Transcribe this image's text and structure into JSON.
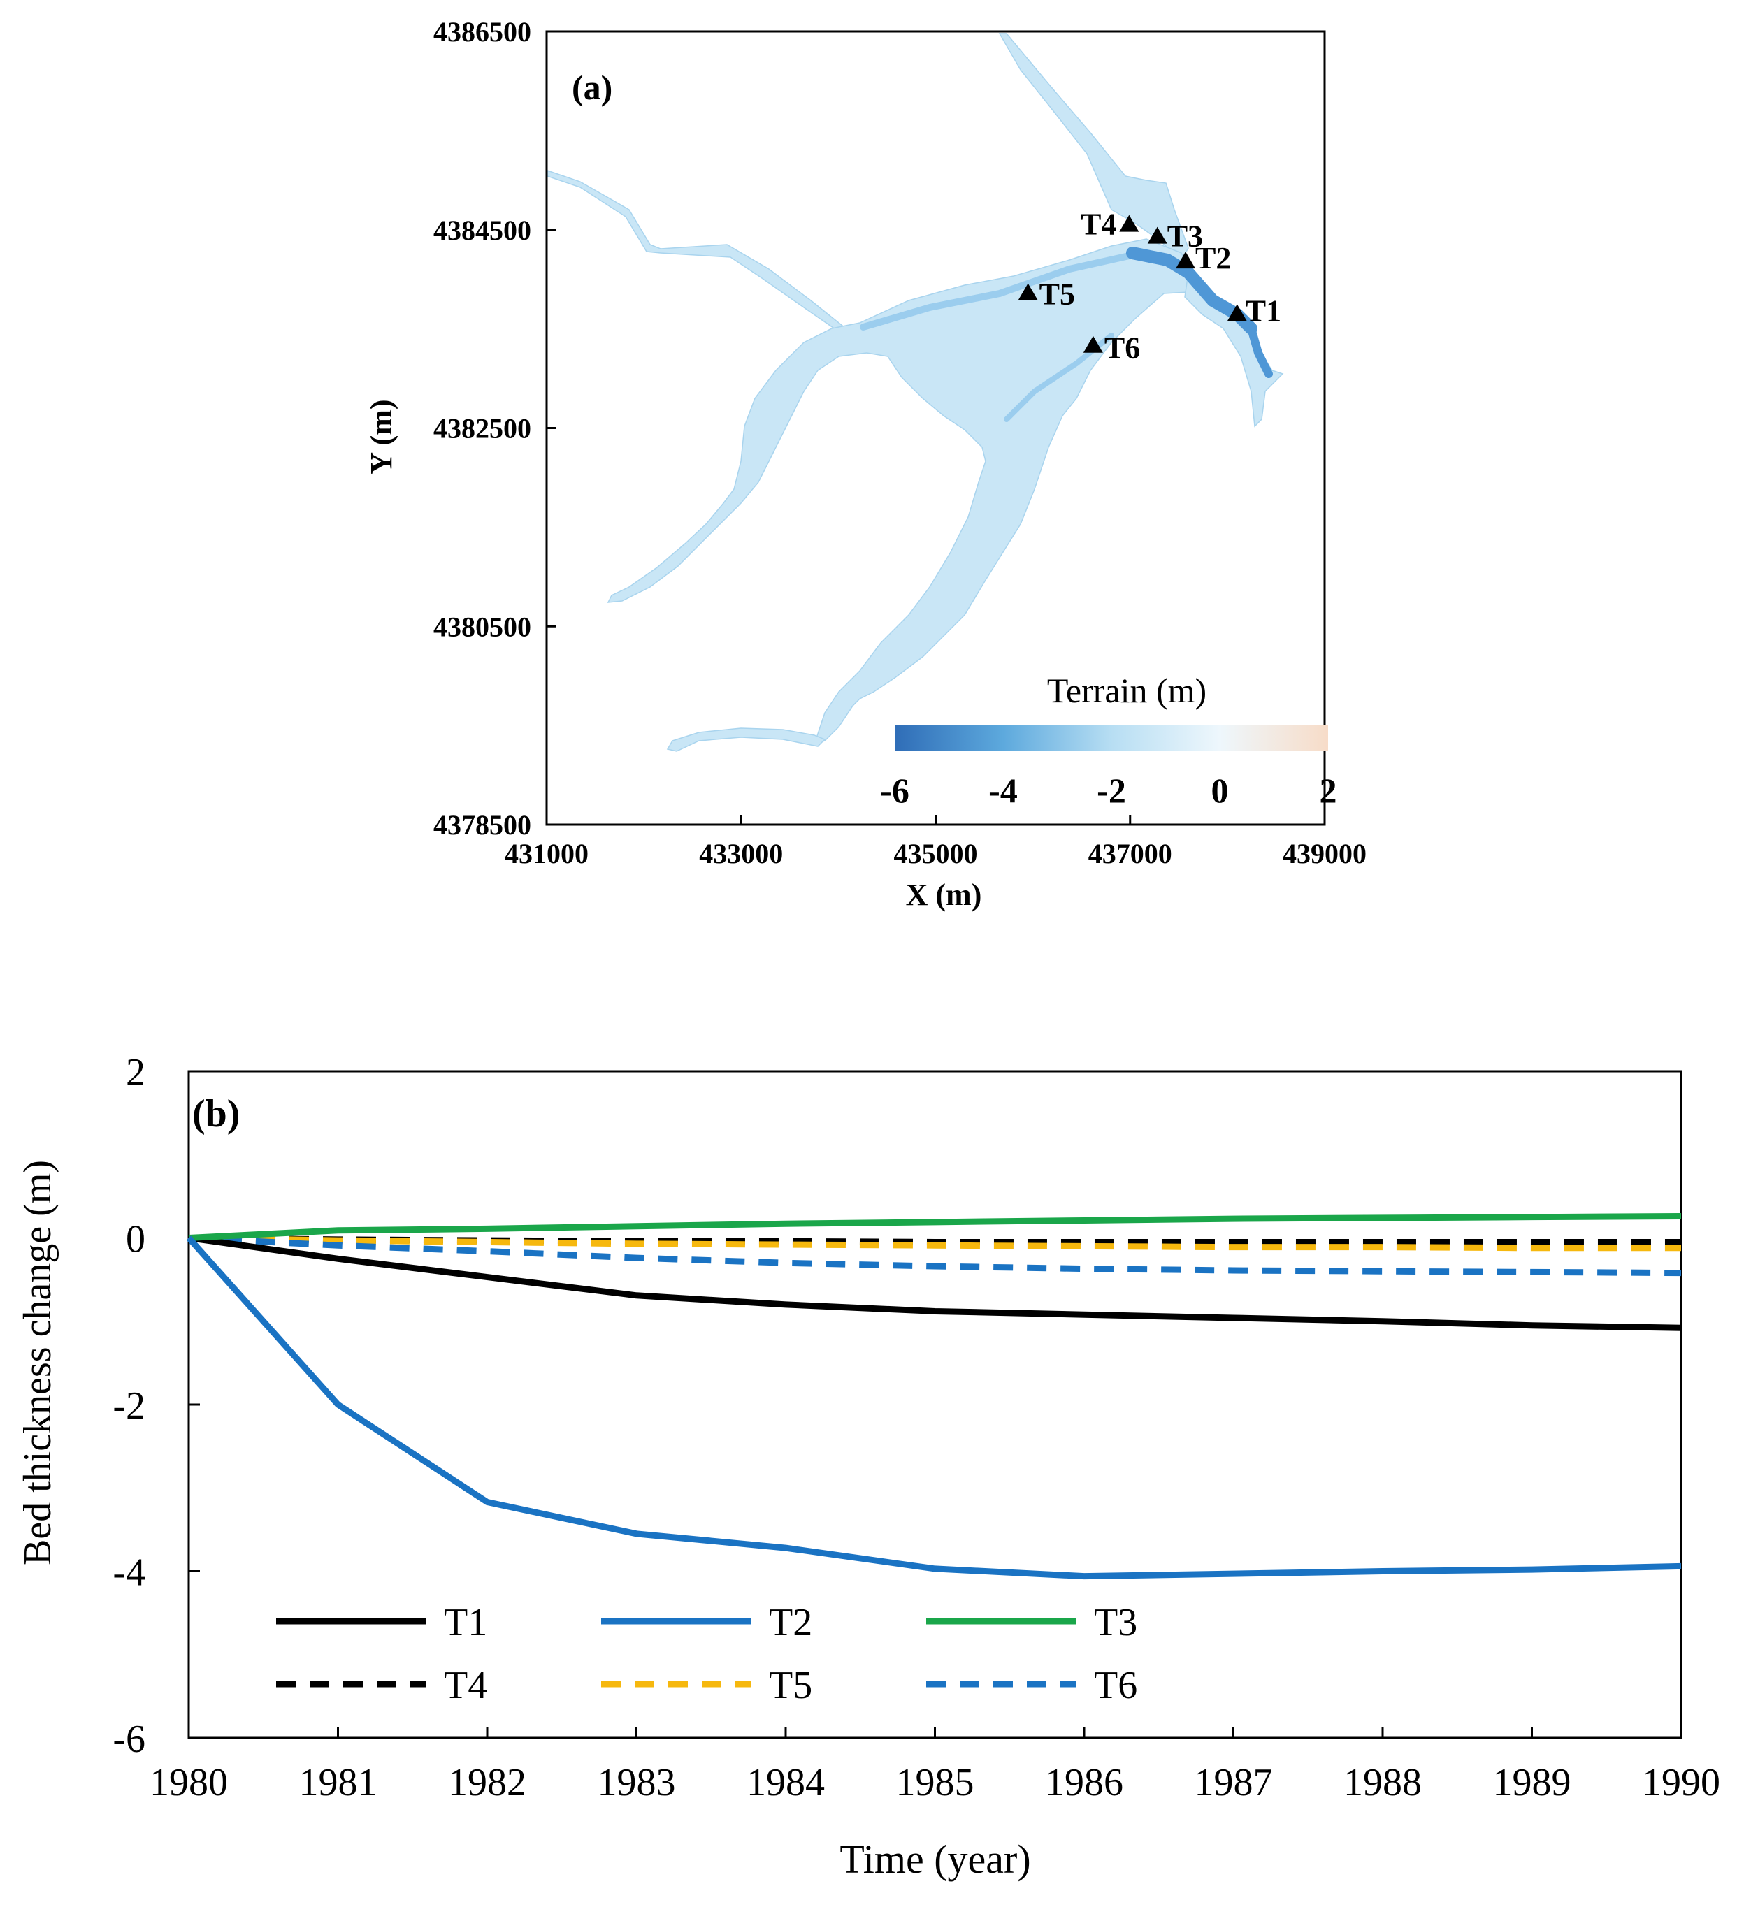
{
  "chart_data": [
    {
      "type": "map",
      "panel_label": "(a)",
      "xlabel": "X (m)",
      "ylabel": "Y (m)",
      "xlim": [
        431000,
        439000
      ],
      "ylim": [
        4378500,
        4386500
      ],
      "xticks": [
        "431000",
        "433000",
        "435000",
        "437000",
        "439000"
      ],
      "yticks": [
        "4386500",
        "4384500",
        "4382500",
        "4380500",
        "4378500"
      ],
      "colorbar": {
        "title": "Terrain (m)",
        "range": [
          -6,
          2
        ],
        "ticks": [
          "-6",
          "-4",
          "-2",
          "0",
          "2"
        ],
        "colors": [
          "#2f6db7",
          "#5da9dd",
          "#b7def3",
          "#eef7fc",
          "#f7dcc8"
        ]
      },
      "stations": [
        {
          "label": "T1",
          "x": 438100,
          "y": 4383650
        },
        {
          "label": "T2",
          "x": 437570,
          "y": 4384180
        },
        {
          "label": "T3",
          "x": 437280,
          "y": 4384430
        },
        {
          "label": "T4",
          "x": 436990,
          "y": 4384550
        },
        {
          "label": "T5",
          "x": 435950,
          "y": 4383860
        },
        {
          "label": "T6",
          "x": 436620,
          "y": 4383330
        }
      ],
      "colors": {
        "water": "#c9e6f6",
        "channel": "#9bcdee",
        "deep": "#4f97d6",
        "marker": "#000000"
      }
    },
    {
      "type": "line",
      "panel_label": "(b)",
      "xlabel": "Time (year)",
      "ylabel": "Bed thickness change (m)",
      "xlim": [
        1980,
        1990
      ],
      "ylim": [
        -6,
        2
      ],
      "xticks": [
        "1980",
        "1981",
        "1982",
        "1983",
        "1984",
        "1985",
        "1986",
        "1987",
        "1988",
        "1989",
        "1990"
      ],
      "yticks": [
        "2",
        "0",
        "-2",
        "-4",
        "-6"
      ],
      "x": [
        1980,
        1981,
        1982,
        1983,
        1984,
        1985,
        1986,
        1987,
        1988,
        1989,
        1990
      ],
      "series": [
        {
          "name": "T1",
          "color": "#000000",
          "dash": false,
          "values": [
            0,
            -0.25,
            -0.47,
            -0.69,
            -0.8,
            -0.88,
            -0.92,
            -0.96,
            -1.0,
            -1.05,
            -1.08
          ]
        },
        {
          "name": "T2",
          "color": "#1a73c3",
          "dash": false,
          "values": [
            0,
            -2.0,
            -3.17,
            -3.55,
            -3.72,
            -3.97,
            -4.06,
            -4.03,
            -4.0,
            -3.98,
            -3.94
          ]
        },
        {
          "name": "T3",
          "color": "#1aa64a",
          "dash": false,
          "values": [
            0,
            0.09,
            0.11,
            0.14,
            0.17,
            0.19,
            0.21,
            0.23,
            0.24,
            0.25,
            0.26
          ]
        },
        {
          "name": "T4",
          "color": "#000000",
          "dash": true,
          "values": [
            0,
            -0.02,
            -0.03,
            -0.04,
            -0.04,
            -0.05,
            -0.05,
            -0.05,
            -0.05,
            -0.05,
            -0.05
          ]
        },
        {
          "name": "T5",
          "color": "#f6b80e",
          "dash": true,
          "values": [
            0,
            -0.03,
            -0.05,
            -0.07,
            -0.08,
            -0.09,
            -0.1,
            -0.11,
            -0.11,
            -0.12,
            -0.12
          ]
        },
        {
          "name": "T6",
          "color": "#1a73c3",
          "dash": true,
          "values": [
            0,
            -0.09,
            -0.16,
            -0.24,
            -0.3,
            -0.34,
            -0.37,
            -0.39,
            -0.4,
            -0.41,
            -0.42
          ]
        }
      ],
      "legend_position": "bottom-left"
    }
  ]
}
